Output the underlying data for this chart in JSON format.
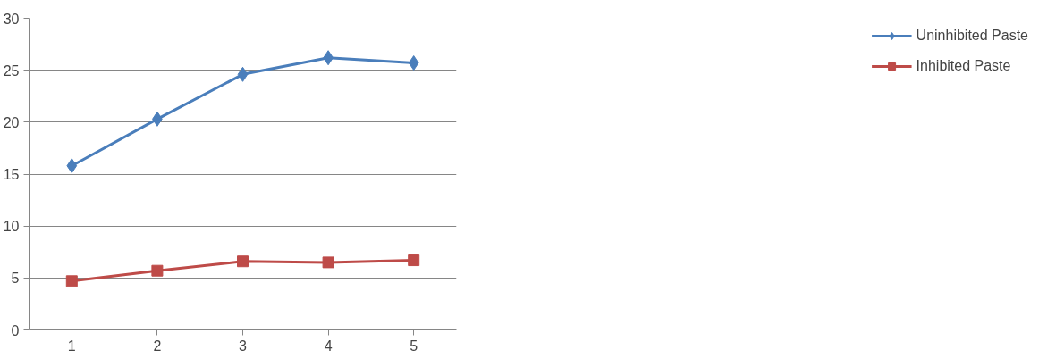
{
  "chart_data": {
    "type": "line",
    "categories": [
      "1",
      "2",
      "3",
      "4",
      "5"
    ],
    "series": [
      {
        "name": "Uninhibited Paste",
        "color": "#4a7ebb",
        "marker": "diamond",
        "values": [
          15.8,
          20.3,
          24.6,
          26.2,
          25.7
        ]
      },
      {
        "name": "Inhibited Paste",
        "color": "#be4b48",
        "marker": "square",
        "values": [
          4.7,
          5.7,
          6.6,
          6.5,
          6.7
        ]
      }
    ],
    "ylim": [
      0,
      30
    ],
    "yticks": [
      0,
      5,
      10,
      15,
      20,
      25,
      30
    ],
    "grid": "y",
    "legend": "right",
    "line_style": "solid"
  }
}
